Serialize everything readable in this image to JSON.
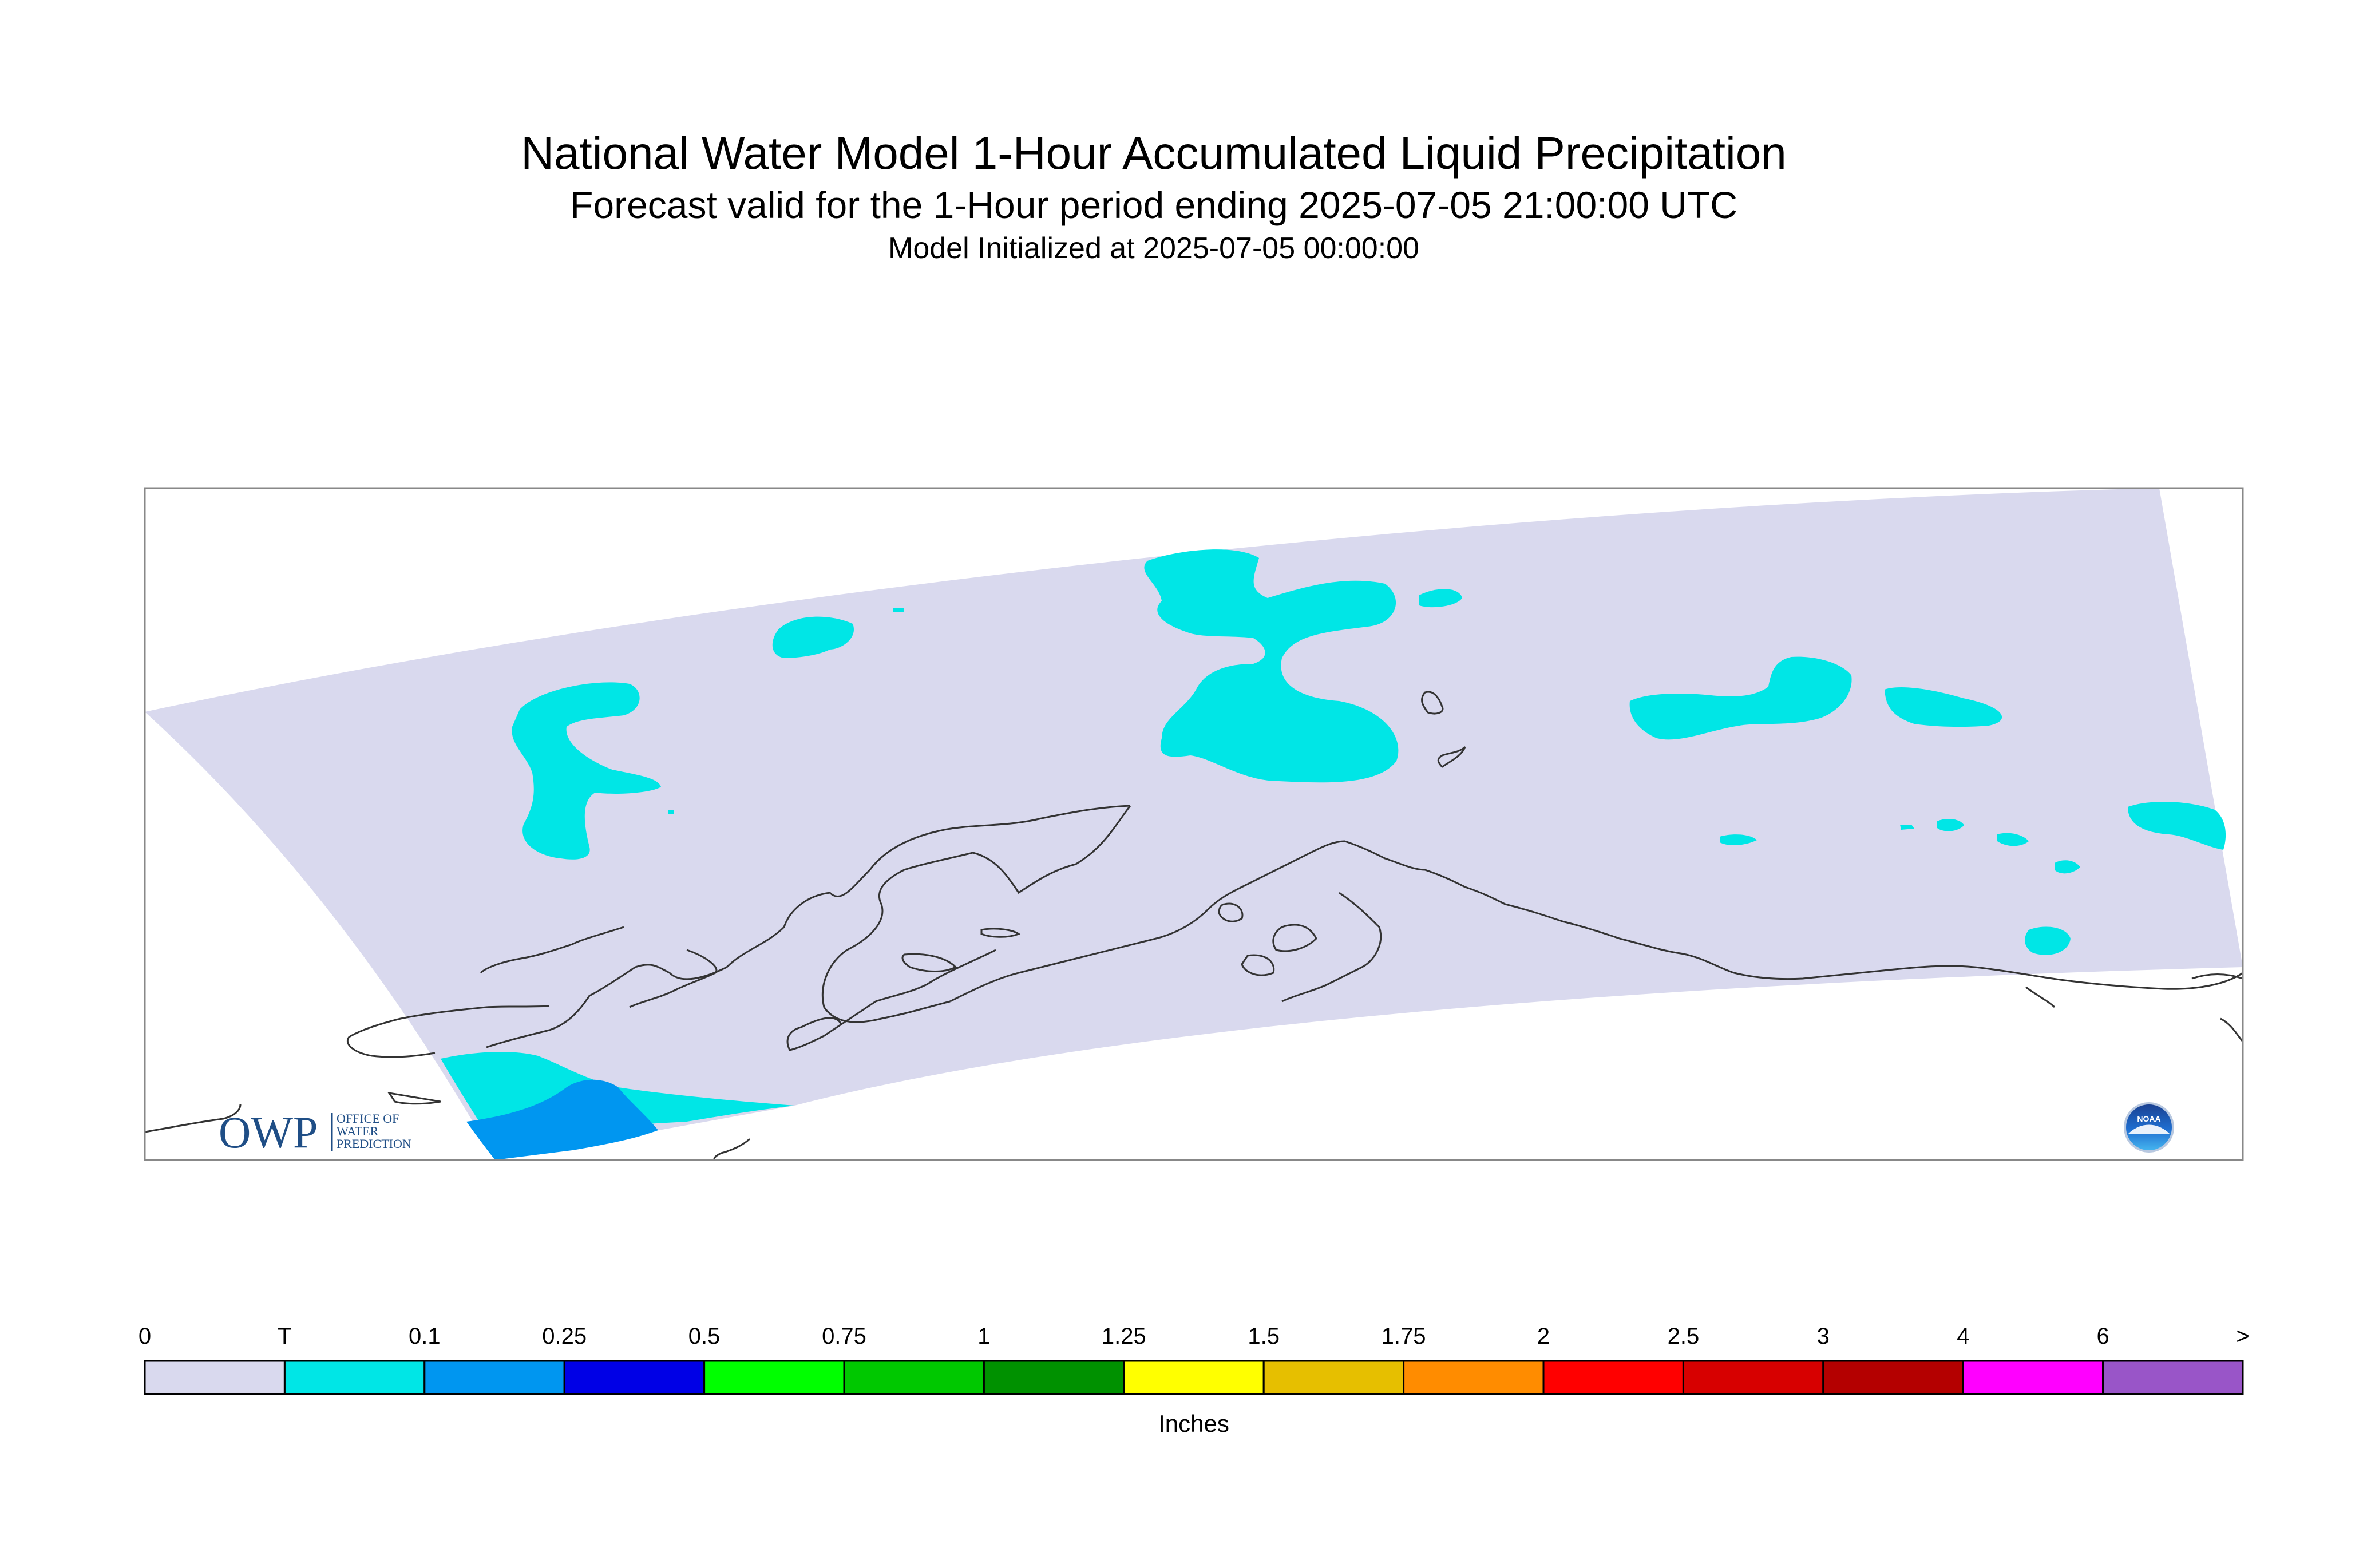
{
  "header": {
    "title": "National Water Model 1-Hour Accumulated Liquid Precipitation",
    "subtitle": "Forecast valid for the 1-Hour period ending 2025-07-05 21:00:00 UTC",
    "init": "Model Initialized at 2025-07-05 00:00:00"
  },
  "logos": {
    "owp_mark": "OWP",
    "owp_text": [
      "OFFICE OF",
      "WATER",
      "PREDICTION"
    ],
    "noaa_mark": "NOAA"
  },
  "legend": {
    "tick_labels": [
      "0",
      "T",
      "0.1",
      "0.25",
      "0.5",
      "0.75",
      "1",
      "1.25",
      "1.5",
      "1.75",
      "2",
      "2.5",
      "3",
      "4",
      "6",
      ">"
    ],
    "colors": [
      "#d9d9ee",
      "#00e6e6",
      "#0096f0",
      "#0000e6",
      "#00ff00",
      "#00c800",
      "#009100",
      "#ffff00",
      "#e6bf00",
      "#ff8c00",
      "#ff0000",
      "#d70000",
      "#b40000",
      "#ff00ff",
      "#9955c8"
    ],
    "units": "Inches"
  },
  "colors": {
    "domain_fill": "#d9d9ee",
    "trace": "#00e6e6",
    "light_rain": "#0096f0",
    "coastline": "#333333",
    "frame": "#888888",
    "owp_blue": "#1f4e86"
  }
}
